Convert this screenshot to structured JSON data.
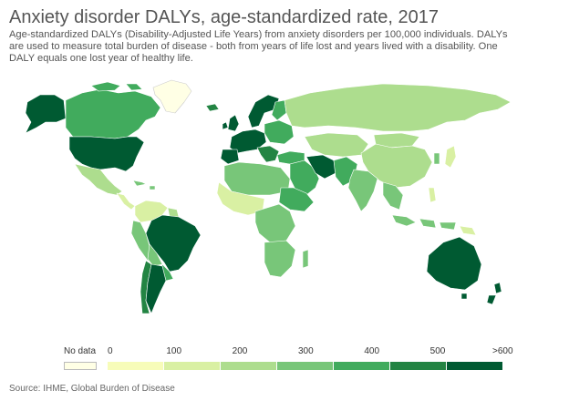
{
  "header": {
    "title": "Anxiety disorder DALYs, age-standardized rate, 2017",
    "subtitle": "Age-standardized DALYs (Disability-Adjusted Life Years) from anxiety disorders per 100,000 individuals. DALYs are used to measure total burden of disease - both from years of life lost and years lived with a disability. One DALY equals one lost year of healthy life."
  },
  "legend": {
    "no_data_label": "No data",
    "no_data_color": "#ffffe5",
    "ticks": [
      "0",
      "100",
      "200",
      "300",
      "400",
      "500",
      ">600"
    ],
    "colors": [
      "#f7fcb9",
      "#d9f0a3",
      "#addd8e",
      "#78c679",
      "#41ab5d",
      "#238443",
      "#005a32"
    ]
  },
  "source": "Source: IHME, Global Burden of Disease",
  "colors": {
    "ocean": "#ffffff",
    "border": "#ffffff"
  }
}
